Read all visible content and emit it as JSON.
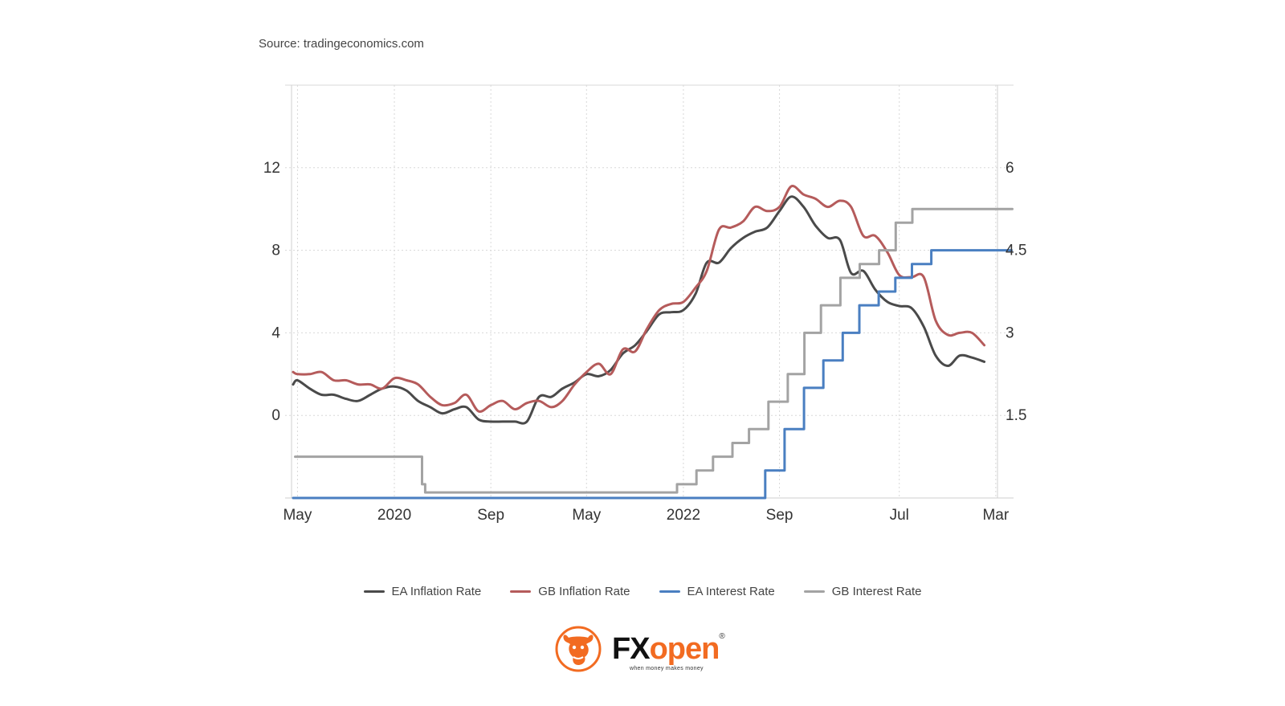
{
  "source": "Source: tradingeconomics.com",
  "colors": {
    "ea_inflation": "#4a4a4a",
    "gb_inflation": "#b55b5b",
    "ea_interest": "#4a7fc1",
    "gb_interest": "#a3a3a3"
  },
  "logo": {
    "brand_part1": "FX",
    "brand_part2": "open",
    "registered": "®",
    "tagline": "when money makes money",
    "icon": "bull-logo-icon"
  },
  "chart_data": {
    "type": "line",
    "x_axis": {
      "ticks": [
        "May",
        "2020",
        "Sep",
        "May",
        "2022",
        "Sep",
        "Jul",
        "Mar"
      ],
      "tick_dates": [
        "2019-05-01",
        "2020-01-01",
        "2020-09-01",
        "2021-05-01",
        "2022-01-01",
        "2022-09-01",
        "2023-07-01",
        "2024-03-01"
      ],
      "range": [
        "2019-04-20",
        "2024-04-15"
      ]
    },
    "y_left": {
      "ticks": [
        "0",
        "4",
        "8",
        "12"
      ],
      "range": [
        -4,
        16
      ]
    },
    "y_right": {
      "ticks": [
        "1.5",
        "3",
        "4.5",
        "6"
      ],
      "range": [
        0,
        7.5
      ]
    },
    "grid": true,
    "legend_position": "bottom",
    "series": [
      {
        "name": "EA Inflation Rate",
        "axis": "left",
        "color": "#4a4a4a",
        "step": false,
        "points": [
          [
            "2019-04-20",
            1.5
          ],
          [
            "2019-05-01",
            1.7
          ],
          [
            "2019-06-01",
            1.3
          ],
          [
            "2019-07-01",
            1.0
          ],
          [
            "2019-08-01",
            1.0
          ],
          [
            "2019-09-01",
            0.8
          ],
          [
            "2019-10-01",
            0.7
          ],
          [
            "2019-11-01",
            1.0
          ],
          [
            "2019-12-01",
            1.3
          ],
          [
            "2020-01-01",
            1.4
          ],
          [
            "2020-02-01",
            1.2
          ],
          [
            "2020-03-01",
            0.7
          ],
          [
            "2020-04-01",
            0.4
          ],
          [
            "2020-05-01",
            0.1
          ],
          [
            "2020-06-01",
            0.3
          ],
          [
            "2020-07-01",
            0.4
          ],
          [
            "2020-08-01",
            -0.2
          ],
          [
            "2020-09-01",
            -0.3
          ],
          [
            "2020-10-01",
            -0.3
          ],
          [
            "2020-11-01",
            -0.3
          ],
          [
            "2020-12-01",
            -0.3
          ],
          [
            "2021-01-01",
            0.9
          ],
          [
            "2021-02-01",
            0.9
          ],
          [
            "2021-03-01",
            1.3
          ],
          [
            "2021-04-01",
            1.6
          ],
          [
            "2021-05-01",
            2.0
          ],
          [
            "2021-06-01",
            1.9
          ],
          [
            "2021-07-01",
            2.2
          ],
          [
            "2021-08-01",
            3.0
          ],
          [
            "2021-09-01",
            3.4
          ],
          [
            "2021-10-01",
            4.1
          ],
          [
            "2021-11-01",
            4.9
          ],
          [
            "2021-12-01",
            5.0
          ],
          [
            "2022-01-01",
            5.1
          ],
          [
            "2022-02-01",
            5.9
          ],
          [
            "2022-03-01",
            7.4
          ],
          [
            "2022-04-01",
            7.4
          ],
          [
            "2022-05-01",
            8.1
          ],
          [
            "2022-06-01",
            8.6
          ],
          [
            "2022-07-01",
            8.9
          ],
          [
            "2022-08-01",
            9.1
          ],
          [
            "2022-09-01",
            9.9
          ],
          [
            "2022-10-01",
            10.6
          ],
          [
            "2022-11-01",
            10.1
          ],
          [
            "2022-12-01",
            9.2
          ],
          [
            "2023-01-01",
            8.6
          ],
          [
            "2023-02-01",
            8.5
          ],
          [
            "2023-03-01",
            6.9
          ],
          [
            "2023-04-01",
            7.0
          ],
          [
            "2023-05-01",
            6.1
          ],
          [
            "2023-06-01",
            5.5
          ],
          [
            "2023-07-01",
            5.3
          ],
          [
            "2023-08-01",
            5.2
          ],
          [
            "2023-09-01",
            4.3
          ],
          [
            "2023-10-01",
            2.9
          ],
          [
            "2023-11-01",
            2.4
          ],
          [
            "2023-12-01",
            2.9
          ],
          [
            "2024-01-01",
            2.8
          ],
          [
            "2024-02-01",
            2.6
          ]
        ]
      },
      {
        "name": "GB Inflation Rate",
        "axis": "left",
        "color": "#b55b5b",
        "step": false,
        "points": [
          [
            "2019-04-20",
            2.1
          ],
          [
            "2019-05-01",
            2.0
          ],
          [
            "2019-06-01",
            2.0
          ],
          [
            "2019-07-01",
            2.1
          ],
          [
            "2019-08-01",
            1.7
          ],
          [
            "2019-09-01",
            1.7
          ],
          [
            "2019-10-01",
            1.5
          ],
          [
            "2019-11-01",
            1.5
          ],
          [
            "2019-12-01",
            1.3
          ],
          [
            "2020-01-01",
            1.8
          ],
          [
            "2020-02-01",
            1.7
          ],
          [
            "2020-03-01",
            1.5
          ],
          [
            "2020-04-01",
            0.9
          ],
          [
            "2020-05-01",
            0.5
          ],
          [
            "2020-06-01",
            0.6
          ],
          [
            "2020-07-01",
            1.0
          ],
          [
            "2020-08-01",
            0.2
          ],
          [
            "2020-09-01",
            0.5
          ],
          [
            "2020-10-01",
            0.7
          ],
          [
            "2020-11-01",
            0.3
          ],
          [
            "2020-12-01",
            0.6
          ],
          [
            "2021-01-01",
            0.7
          ],
          [
            "2021-02-01",
            0.4
          ],
          [
            "2021-03-01",
            0.7
          ],
          [
            "2021-04-01",
            1.5
          ],
          [
            "2021-05-01",
            2.1
          ],
          [
            "2021-06-01",
            2.5
          ],
          [
            "2021-07-01",
            2.0
          ],
          [
            "2021-08-01",
            3.2
          ],
          [
            "2021-09-01",
            3.1
          ],
          [
            "2021-10-01",
            4.2
          ],
          [
            "2021-11-01",
            5.1
          ],
          [
            "2021-12-01",
            5.4
          ],
          [
            "2022-01-01",
            5.5
          ],
          [
            "2022-02-01",
            6.2
          ],
          [
            "2022-03-01",
            7.0
          ],
          [
            "2022-04-01",
            9.0
          ],
          [
            "2022-05-01",
            9.1
          ],
          [
            "2022-06-01",
            9.4
          ],
          [
            "2022-07-01",
            10.1
          ],
          [
            "2022-08-01",
            9.9
          ],
          [
            "2022-09-01",
            10.1
          ],
          [
            "2022-10-01",
            11.1
          ],
          [
            "2022-11-01",
            10.7
          ],
          [
            "2022-12-01",
            10.5
          ],
          [
            "2023-01-01",
            10.1
          ],
          [
            "2023-02-01",
            10.4
          ],
          [
            "2023-03-01",
            10.1
          ],
          [
            "2023-04-01",
            8.7
          ],
          [
            "2023-05-01",
            8.7
          ],
          [
            "2023-06-01",
            7.9
          ],
          [
            "2023-07-01",
            6.8
          ],
          [
            "2023-08-01",
            6.7
          ],
          [
            "2023-09-01",
            6.7
          ],
          [
            "2023-10-01",
            4.6
          ],
          [
            "2023-11-01",
            3.9
          ],
          [
            "2023-12-01",
            4.0
          ],
          [
            "2024-01-01",
            4.0
          ],
          [
            "2024-02-01",
            3.4
          ]
        ]
      },
      {
        "name": "EA Interest Rate",
        "axis": "right",
        "color": "#4a7fc1",
        "step": true,
        "points": [
          [
            "2019-04-20",
            0.0
          ],
          [
            "2022-07-27",
            0.0
          ],
          [
            "2022-07-27",
            0.5
          ],
          [
            "2022-09-14",
            0.5
          ],
          [
            "2022-09-14",
            1.25
          ],
          [
            "2022-11-02",
            1.25
          ],
          [
            "2022-11-02",
            2.0
          ],
          [
            "2022-12-21",
            2.0
          ],
          [
            "2022-12-21",
            2.5
          ],
          [
            "2023-02-08",
            2.5
          ],
          [
            "2023-02-08",
            3.0
          ],
          [
            "2023-03-22",
            3.0
          ],
          [
            "2023-03-22",
            3.5
          ],
          [
            "2023-05-10",
            3.5
          ],
          [
            "2023-05-10",
            3.75
          ],
          [
            "2023-06-21",
            3.75
          ],
          [
            "2023-06-21",
            4.0
          ],
          [
            "2023-08-02",
            4.0
          ],
          [
            "2023-08-02",
            4.25
          ],
          [
            "2023-09-20",
            4.25
          ],
          [
            "2023-09-20",
            4.5
          ],
          [
            "2024-04-10",
            4.5
          ]
        ]
      },
      {
        "name": "GB Interest Rate",
        "axis": "right",
        "color": "#a3a3a3",
        "step": true,
        "points": [
          [
            "2019-04-25",
            0.75
          ],
          [
            "2020-03-11",
            0.75
          ],
          [
            "2020-03-11",
            0.25
          ],
          [
            "2020-03-19",
            0.25
          ],
          [
            "2020-03-19",
            0.1
          ],
          [
            "2021-12-16",
            0.1
          ],
          [
            "2021-12-16",
            0.25
          ],
          [
            "2022-02-03",
            0.25
          ],
          [
            "2022-02-03",
            0.5
          ],
          [
            "2022-03-17",
            0.5
          ],
          [
            "2022-03-17",
            0.75
          ],
          [
            "2022-05-05",
            0.75
          ],
          [
            "2022-05-05",
            1.0
          ],
          [
            "2022-06-16",
            1.0
          ],
          [
            "2022-06-16",
            1.25
          ],
          [
            "2022-08-04",
            1.25
          ],
          [
            "2022-08-04",
            1.75
          ],
          [
            "2022-09-22",
            1.75
          ],
          [
            "2022-09-22",
            2.25
          ],
          [
            "2022-11-03",
            2.25
          ],
          [
            "2022-11-03",
            3.0
          ],
          [
            "2022-12-15",
            3.0
          ],
          [
            "2022-12-15",
            3.5
          ],
          [
            "2023-02-02",
            3.5
          ],
          [
            "2023-02-02",
            4.0
          ],
          [
            "2023-03-23",
            4.0
          ],
          [
            "2023-03-23",
            4.25
          ],
          [
            "2023-05-11",
            4.25
          ],
          [
            "2023-05-11",
            4.5
          ],
          [
            "2023-06-22",
            4.5
          ],
          [
            "2023-06-22",
            5.0
          ],
          [
            "2023-08-03",
            5.0
          ],
          [
            "2023-08-03",
            5.25
          ],
          [
            "2024-04-12",
            5.25
          ]
        ]
      }
    ]
  }
}
